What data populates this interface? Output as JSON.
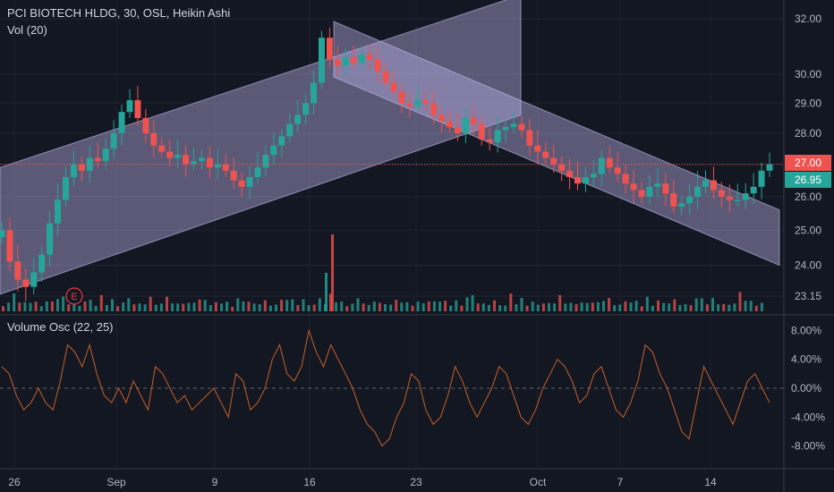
{
  "header": {
    "title": "PCI BIOTECH HLDG, 30, OSL, Heikin Ashi",
    "volume_label": "Vol (20)"
  },
  "oscillator": {
    "label": "Volume Osc (22, 25)"
  },
  "earnings_marker": "E",
  "price_tags": {
    "last_price": {
      "value": "27.00",
      "color": "#ef5350"
    },
    "bid_price": {
      "value": "26.95",
      "color": "#26a69a"
    }
  },
  "chart_data": [
    {
      "type": "candlestick",
      "title": "PCI BIOTECH HLDG, 30, OSL, Heikin Ashi",
      "scale": "log",
      "ylim": [
        22.9,
        32.9
      ],
      "y_ticks": [
        "32.00",
        "30.00",
        "29.00",
        "28.00",
        "27.00",
        "26.00",
        "25.00",
        "24.00",
        "23.15"
      ],
      "x_ticks": [
        "26",
        "Sep",
        "9",
        "16",
        "23",
        "Oct",
        "7",
        "14"
      ],
      "series_close": [
        25.0,
        24.1,
        23.6,
        23.4,
        23.8,
        24.3,
        25.2,
        25.9,
        26.6,
        27.0,
        26.8,
        27.2,
        27.1,
        27.5,
        28.0,
        28.7,
        29.1,
        28.5,
        28.0,
        27.6,
        27.4,
        27.2,
        27.3,
        27.0,
        27.1,
        27.2,
        26.9,
        27.0,
        26.8,
        26.5,
        26.3,
        26.6,
        26.9,
        27.3,
        27.6,
        27.9,
        28.3,
        28.6,
        29.0,
        29.7,
        31.3,
        30.5,
        30.3,
        30.6,
        30.4,
        30.7,
        30.5,
        30.1,
        29.7,
        29.4,
        29.0,
        28.9,
        29.1,
        29.0,
        28.6,
        28.4,
        28.2,
        28.0,
        28.5,
        28.3,
        27.8,
        27.7,
        28.1,
        28.2,
        28.3,
        28.1,
        27.6,
        27.4,
        27.2,
        27.0,
        26.8,
        26.6,
        26.4,
        26.6,
        26.7,
        27.2,
        26.9,
        26.7,
        26.4,
        26.2,
        26.0,
        26.3,
        26.4,
        26.1,
        25.7,
        25.8,
        26.0,
        26.3,
        26.5,
        26.2,
        26.0,
        25.9,
        25.9,
        26.1,
        26.3,
        26.8,
        27.0
      ],
      "candles": [
        {
          "x": "26",
          "open": 24.8,
          "close": 25.0,
          "high": 25.0,
          "low": 24.0
        },
        {
          "x": "Sep",
          "open": 28.0,
          "close": 28.7,
          "high": 29.4,
          "low": 27.8
        },
        {
          "x": "9",
          "open": 26.9,
          "close": 26.6,
          "high": 27.1,
          "low": 26.0
        },
        {
          "x": "16",
          "open": 29.7,
          "close": 31.3,
          "high": 32.0,
          "low": 28.0
        },
        {
          "x": "23",
          "open": 28.9,
          "close": 28.6,
          "high": 29.1,
          "low": 28.3
        },
        {
          "x": "Oct",
          "open": 27.8,
          "close": 27.6,
          "high": 28.9,
          "low": 27.2
        },
        {
          "x": "7",
          "open": 26.6,
          "close": 26.7,
          "high": 27.6,
          "low": 26.3
        },
        {
          "x": "14",
          "open": 26.3,
          "close": 27.0,
          "high": 27.0,
          "low": 25.6
        }
      ],
      "channels": [
        {
          "start_x": "Aug 23",
          "end_x": "Sep 20",
          "upper": [
            26.9,
            32.9
          ],
          "lower": [
            23.2,
            28.6
          ]
        },
        {
          "start_x": "Sep 17",
          "end_x": "Oct 18",
          "upper": [
            31.9,
            25.6
          ],
          "lower": [
            29.9,
            24.0
          ]
        }
      ]
    },
    {
      "type": "bar",
      "title": "Vol (20)",
      "values_relative": [
        0.3,
        0.5,
        0.9,
        0.6,
        0.4,
        0.7,
        0.5,
        0.3,
        0.6,
        0.4,
        1.0,
        0.8,
        0.5,
        0.3,
        0.4,
        0.6,
        0.5,
        0.2,
        0.9,
        0.4,
        0.7,
        0.3,
        0.5,
        0.6,
        0.4
      ]
    },
    {
      "type": "line",
      "title": "Volume Osc (22, 25)",
      "unit": "%",
      "ylim": [
        -9.5,
        10
      ],
      "y_ticks": [
        "8.00%",
        "4.00%",
        "0.00%",
        "-4.00%",
        "-8.00%"
      ],
      "values": [
        3,
        2,
        -1,
        -3,
        -2,
        0,
        -2,
        -3,
        1,
        6,
        5,
        3,
        6,
        2,
        -1,
        -2,
        0,
        -2,
        1,
        -1,
        -3,
        3,
        2,
        0,
        -2,
        -1,
        -3,
        -2,
        -1,
        0,
        -2,
        -4,
        2,
        1,
        -3,
        -2,
        0,
        4,
        6,
        2,
        1,
        3,
        8,
        5,
        3,
        6,
        4,
        2,
        0,
        -3,
        -5,
        -6,
        -8,
        -7,
        -4,
        -2,
        2,
        1,
        -3,
        -5,
        -4,
        -1,
        3,
        1,
        -2,
        -4,
        -2,
        0,
        3,
        2,
        -1,
        -4,
        -5,
        -3,
        0,
        2,
        4,
        3,
        1,
        -2,
        -1,
        2,
        3,
        0,
        -3,
        -4,
        -2,
        1,
        6,
        5,
        2,
        0,
        -3,
        -6,
        -7,
        -2,
        3,
        1,
        -1,
        -3,
        -5,
        -2,
        1,
        2,
        0,
        -2
      ]
    }
  ]
}
